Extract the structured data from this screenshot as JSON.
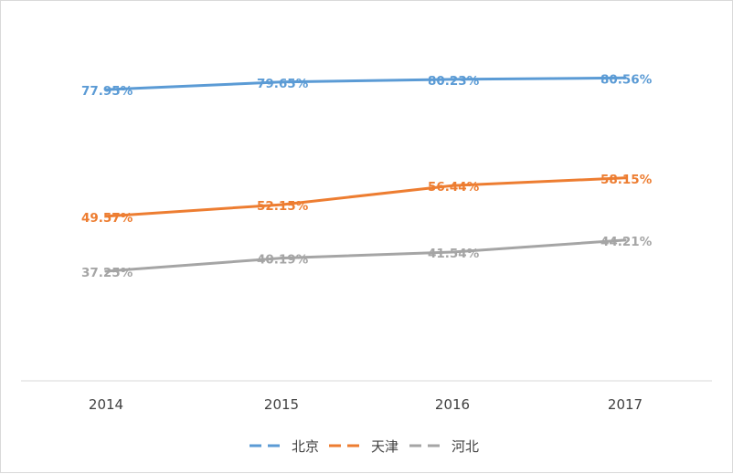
{
  "chart_data": {
    "type": "line",
    "title": "",
    "xlabel": "",
    "ylabel": "",
    "categories": [
      "2014",
      "2015",
      "2016",
      "2017"
    ],
    "ylim": [
      30,
      90
    ],
    "grid": false,
    "legend_position": "bottom",
    "series": [
      {
        "name": "北京",
        "color": "#5b9bd5",
        "values": [
          77.95,
          79.65,
          80.23,
          80.56
        ],
        "labels": [
          "77.95%",
          "79.65%",
          "80.23%",
          "80.56%"
        ]
      },
      {
        "name": "天津",
        "color": "#ed7d31",
        "values": [
          49.57,
          52.15,
          56.44,
          58.15
        ],
        "labels": [
          "49.57%",
          "52.15%",
          "56.44%",
          "58.15%"
        ]
      },
      {
        "name": "河北",
        "color": "#a5a5a5",
        "values": [
          37.25,
          40.19,
          41.54,
          44.21
        ],
        "labels": [
          "37.25%",
          "40.19%",
          "41.54%",
          "44.21%"
        ]
      }
    ]
  }
}
